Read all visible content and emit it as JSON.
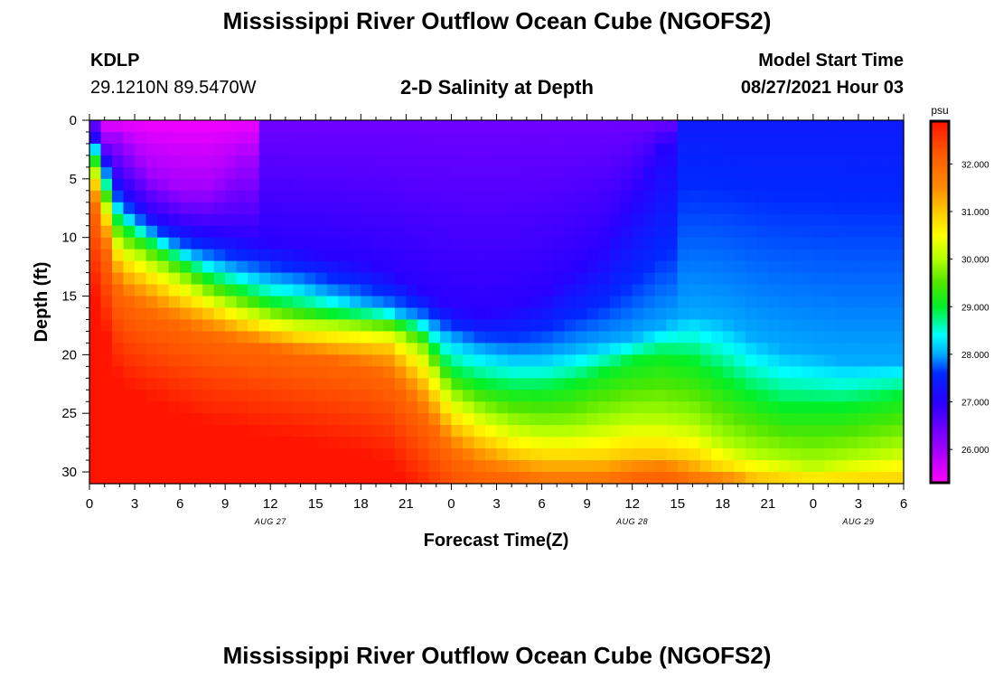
{
  "header": {
    "title": "Mississippi River Outflow Ocean Cube (NGOFS2)",
    "station_id": "KDLP",
    "station_coords": "29.1210N  89.5470W",
    "plot_subtitle": "2-D Salinity at Depth",
    "model_start_label": "Model Start Time",
    "model_start_value": "08/27/2021 Hour 03"
  },
  "footer": {
    "title": "Mississippi River Outflow Ocean Cube (NGOFS2)"
  },
  "chart_data": {
    "type": "heatmap",
    "title": "2-D Salinity at Depth",
    "xlabel": "Forecast Time(Z)",
    "ylabel": "Depth (ft)",
    "x_hours_range": [
      0,
      54
    ],
    "y_depth_range": [
      0,
      31
    ],
    "y_reversed": true,
    "x_tick_labels": [
      "0",
      "3",
      "6",
      "9",
      "12",
      "15",
      "18",
      "21",
      "0",
      "3",
      "6",
      "9",
      "12",
      "15",
      "18",
      "21",
      "0",
      "3",
      "6"
    ],
    "x_tick_hours": [
      0,
      3,
      6,
      9,
      12,
      15,
      18,
      21,
      24,
      27,
      30,
      33,
      36,
      39,
      42,
      45,
      48,
      51,
      54
    ],
    "y_ticks": [
      0,
      5,
      10,
      15,
      20,
      25,
      30
    ],
    "date_labels": [
      {
        "text": "AUG 27",
        "hour": 12
      },
      {
        "text": "AUG 28",
        "hour": 36
      },
      {
        "text": "AUG 29",
        "hour": 51
      }
    ],
    "colorbar": {
      "unit": "psu",
      "min": 25.3,
      "max": 32.9,
      "tick_values": [
        26,
        27,
        28,
        29,
        30,
        31,
        32
      ],
      "tick_labels": [
        "26.000",
        "27.000",
        "28.000",
        "29.000",
        "30.000",
        "31.000",
        "32.000"
      ]
    },
    "salinity_profiles": {
      "description_units": "psu",
      "hours": [
        0,
        2,
        4,
        6,
        8,
        10,
        12,
        14,
        16,
        18,
        20,
        22,
        24,
        26,
        28,
        30,
        32,
        34,
        36,
        38,
        40,
        42,
        44,
        46,
        48,
        50,
        52,
        54
      ],
      "isohaline_depths_ft": {
        "26.0": [
          null,
          1.5,
          4.5,
          6.0,
          6.0,
          3.5,
          null,
          null,
          null,
          null,
          null,
          null,
          null,
          null,
          null,
          null,
          null,
          null,
          null,
          null,
          null,
          null,
          null,
          null,
          null,
          null,
          null,
          null
        ],
        "27.0": [
          0.5,
          5.5,
          8.0,
          9.0,
          9.5,
          10.0,
          10.5,
          11.0,
          11.5,
          12.0,
          13.0,
          14.5,
          16.0,
          16.5,
          16.0,
          15.0,
          13.0,
          11.0,
          7.0,
          2.0,
          null,
          null,
          null,
          null,
          null,
          null,
          null,
          null
        ],
        "28.0": [
          1.0,
          7.5,
          9.5,
          11.0,
          12.0,
          12.8,
          13.5,
          14.0,
          14.8,
          15.5,
          16.2,
          17.0,
          18.5,
          19.5,
          20.0,
          20.0,
          19.5,
          19.0,
          18.5,
          17.5,
          16.5,
          17.0,
          18.5,
          19.5,
          20.0,
          20.5,
          20.5,
          20.5
        ],
        "29.0": [
          2.0,
          9.0,
          10.5,
          12.0,
          13.5,
          14.5,
          15.5,
          16.0,
          16.5,
          16.8,
          17.0,
          18.0,
          21.5,
          22.5,
          23.0,
          23.0,
          22.5,
          21.5,
          20.5,
          20.0,
          20.5,
          22.0,
          23.5,
          24.5,
          24.5,
          24.5,
          24.0,
          23.5
        ],
        "30.0": [
          3.0,
          10.5,
          12.0,
          13.5,
          15.0,
          16.0,
          16.8,
          17.3,
          17.5,
          17.7,
          18.0,
          19.5,
          23.5,
          25.0,
          26.0,
          26.5,
          26.5,
          26.0,
          25.5,
          25.5,
          26.0,
          27.5,
          28.5,
          29.0,
          29.5,
          29.0,
          28.5,
          28.0
        ],
        "31.0": [
          4.0,
          12.5,
          14.0,
          15.5,
          16.5,
          17.5,
          18.2,
          18.7,
          19.0,
          19.2,
          19.5,
          22.0,
          26.0,
          27.5,
          28.5,
          29.0,
          29.0,
          29.0,
          28.5,
          28.5,
          29.0,
          30.0,
          30.5,
          30.8,
          31.0,
          31.0,
          31.0,
          31.0
        ],
        "32.0": [
          6.0,
          15.0,
          16.5,
          17.5,
          18.5,
          19.0,
          19.5,
          20.0,
          20.5,
          21.0,
          22.0,
          25.0,
          28.5,
          30.0,
          30.5,
          31.0,
          31.0,
          31.0,
          30.5,
          30.0,
          31.0,
          31.0,
          31.0,
          31.0,
          31.0,
          31.0,
          31.0,
          31.0
        ]
      }
    }
  }
}
